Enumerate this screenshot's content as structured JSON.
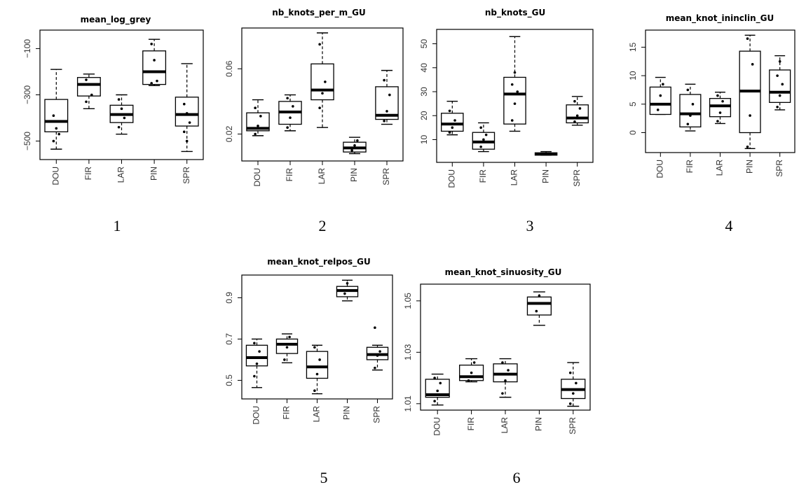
{
  "chart_data": [
    {
      "type": "boxplot",
      "title": "mean_log_grey",
      "panel_number": "1",
      "categories": [
        "DOU",
        "FIR",
        "LAR",
        "PIN",
        "SPR"
      ],
      "yticks": [
        -100,
        -300,
        -500
      ],
      "ylim": [
        -580,
        -20
      ],
      "boxes": [
        {
          "min": -535,
          "q1": -460,
          "median": -415,
          "q3": -320,
          "max": -190,
          "points": [
            -390,
            -445,
            -470,
            -500
          ]
        },
        {
          "min": -360,
          "q1": -305,
          "median": -255,
          "q3": -225,
          "max": -210,
          "points": [
            -235,
            -255,
            -300,
            -330
          ]
        },
        {
          "min": -470,
          "q1": -420,
          "median": -385,
          "q3": -345,
          "max": -300,
          "points": [
            -320,
            -360,
            -400,
            -440
          ]
        },
        {
          "min": -260,
          "q1": -255,
          "median": -200,
          "q3": -110,
          "max": -60,
          "points": [
            -80,
            -150,
            -240,
            -250
          ]
        },
        {
          "min": -545,
          "q1": -435,
          "median": -385,
          "q3": -310,
          "max": -165,
          "points": [
            -340,
            -380,
            -420,
            -460,
            -500
          ]
        }
      ]
    },
    {
      "type": "boxplot",
      "title": "nb_knots_per_m_GU",
      "panel_number": "2",
      "categories": [
        "DOU",
        "FIR",
        "LAR",
        "PIN",
        "SPR"
      ],
      "yticks": [
        0.02,
        0.06
      ],
      "ylim": [
        0.0035,
        0.085
      ],
      "boxes": [
        {
          "min": 0.019,
          "q1": 0.022,
          "median": 0.0235,
          "q3": 0.033,
          "max": 0.041,
          "points": [
            0.02,
            0.025,
            0.031,
            0.036
          ]
        },
        {
          "min": 0.022,
          "q1": 0.026,
          "median": 0.0335,
          "q3": 0.04,
          "max": 0.044,
          "points": [
            0.024,
            0.03,
            0.037,
            0.042
          ]
        },
        {
          "min": 0.024,
          "q1": 0.041,
          "median": 0.047,
          "q3": 0.063,
          "max": 0.082,
          "points": [
            0.036,
            0.045,
            0.052,
            0.075
          ]
        },
        {
          "min": 0.008,
          "q1": 0.009,
          "median": 0.0115,
          "q3": 0.015,
          "max": 0.018,
          "points": [
            0.01,
            0.013,
            0.016
          ]
        },
        {
          "min": 0.026,
          "q1": 0.029,
          "median": 0.0315,
          "q3": 0.049,
          "max": 0.059,
          "points": [
            0.028,
            0.034,
            0.044,
            0.053
          ]
        }
      ]
    },
    {
      "type": "boxplot",
      "title": "nb_knots_GU",
      "panel_number": "3",
      "categories": [
        "DOU",
        "FIR",
        "LAR",
        "PIN",
        "SPR"
      ],
      "yticks": [
        10,
        20,
        30,
        40,
        50
      ],
      "ylim": [
        0.5,
        56
      ],
      "boxes": [
        {
          "min": 12,
          "q1": 13.5,
          "median": 16.5,
          "q3": 21,
          "max": 26,
          "points": [
            13,
            15,
            18,
            22
          ]
        },
        {
          "min": 5,
          "q1": 6,
          "median": 9,
          "q3": 13,
          "max": 17,
          "points": [
            7,
            10,
            12,
            15
          ]
        },
        {
          "min": 13.5,
          "q1": 16.5,
          "median": 29,
          "q3": 36,
          "max": 53,
          "points": [
            18,
            25,
            30,
            33,
            38
          ]
        },
        {
          "min": 3.5,
          "q1": 3.5,
          "median": 4,
          "q3": 4.5,
          "max": 5,
          "points": [
            4
          ]
        },
        {
          "min": 16,
          "q1": 17,
          "median": 19,
          "q3": 24.5,
          "max": 28,
          "points": [
            17.5,
            20,
            23,
            26
          ]
        }
      ]
    },
    {
      "type": "boxplot",
      "title": "mean_knot_ininclin_GU",
      "panel_number": "4",
      "categories": [
        "DOU",
        "FIR",
        "LAR",
        "PIN",
        "SPR"
      ],
      "yticks": [
        0,
        5,
        10,
        15
      ],
      "ylim": [
        -3.5,
        18
      ],
      "boxes": [
        {
          "min": 3.2,
          "q1": 3.2,
          "median": 5,
          "q3": 8,
          "max": 9.7,
          "points": [
            4,
            6.5,
            8.5
          ]
        },
        {
          "min": 0.3,
          "q1": 1,
          "median": 3.3,
          "q3": 6.7,
          "max": 8.5,
          "points": [
            1.5,
            3,
            5,
            7.5
          ]
        },
        {
          "min": 1.6,
          "q1": 2.8,
          "median": 4.7,
          "q3": 6,
          "max": 7.1,
          "points": [
            2,
            3.5,
            5.5,
            6.5
          ]
        },
        {
          "min": -2.8,
          "q1": 0,
          "median": 7.3,
          "q3": 14.3,
          "max": 17.1,
          "points": [
            -2.5,
            3,
            12,
            16.5
          ]
        },
        {
          "min": 4,
          "q1": 5.3,
          "median": 7.1,
          "q3": 11,
          "max": 13.5,
          "points": [
            4.5,
            6.5,
            8.5,
            10,
            12.5
          ]
        }
      ]
    },
    {
      "type": "boxplot",
      "title": "mean_knot_relpos_GU",
      "panel_number": "5",
      "categories": [
        "DOU",
        "FIR",
        "LAR",
        "PIN",
        "SPR"
      ],
      "yticks": [
        0.5,
        0.7,
        0.9
      ],
      "ylim": [
        0.41,
        1.01
      ],
      "boxes": [
        {
          "min": 0.465,
          "q1": 0.57,
          "median": 0.61,
          "q3": 0.67,
          "max": 0.7,
          "points": [
            0.52,
            0.58,
            0.64,
            0.68
          ]
        },
        {
          "min": 0.585,
          "q1": 0.63,
          "median": 0.675,
          "q3": 0.7,
          "max": 0.725,
          "points": [
            0.6,
            0.66,
            0.71
          ]
        },
        {
          "min": 0.435,
          "q1": 0.51,
          "median": 0.565,
          "q3": 0.64,
          "max": 0.67,
          "points": [
            0.45,
            0.53,
            0.6,
            0.66
          ]
        },
        {
          "min": 0.885,
          "q1": 0.905,
          "median": 0.935,
          "q3": 0.955,
          "max": 0.985,
          "points": [
            0.92,
            0.97
          ]
        },
        {
          "min": 0.55,
          "q1": 0.6,
          "median": 0.625,
          "q3": 0.66,
          "max": 0.67,
          "points": [
            0.56,
            0.62,
            0.64,
            0.755
          ]
        }
      ]
    },
    {
      "type": "boxplot",
      "title": "mean_knot_sinuosity_GU",
      "panel_number": "6",
      "categories": [
        "DOU",
        "FIR",
        "LAR",
        "PIN",
        "SPR"
      ],
      "yticks": [
        1.01,
        1.03,
        1.05
      ],
      "ylim": [
        1.0075,
        1.0565
      ],
      "boxes": [
        {
          "min": 1.0095,
          "q1": 1.0125,
          "median": 1.0135,
          "q3": 1.0195,
          "max": 1.0215,
          "points": [
            1.011,
            1.015,
            1.018,
            1.02
          ]
        },
        {
          "min": 1.0185,
          "q1": 1.019,
          "median": 1.0205,
          "q3": 1.025,
          "max": 1.0275,
          "points": [
            1.019,
            1.022,
            1.026
          ]
        },
        {
          "min": 1.0125,
          "q1": 1.0185,
          "median": 1.0215,
          "q3": 1.0255,
          "max": 1.0275,
          "points": [
            1.014,
            1.019,
            1.023,
            1.026
          ]
        },
        {
          "min": 1.0405,
          "q1": 1.0445,
          "median": 1.049,
          "q3": 1.0515,
          "max": 1.0535,
          "points": [
            1.046,
            1.052
          ]
        },
        {
          "min": 1.009,
          "q1": 1.012,
          "median": 1.0155,
          "q3": 1.0195,
          "max": 1.026,
          "points": [
            1.01,
            1.014,
            1.018,
            1.022
          ]
        }
      ]
    }
  ]
}
